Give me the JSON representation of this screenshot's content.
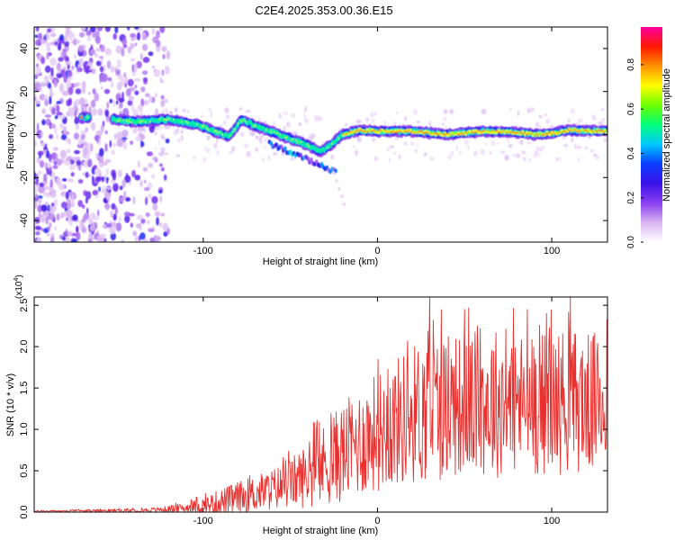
{
  "title": "C2E4.2025.353.00.36.E15",
  "colors": {
    "snr_line": "#e8312f",
    "axis": "#000000",
    "background": "#ffffff"
  },
  "chart_data": [
    {
      "type": "heatmap",
      "name": "spectrogram",
      "xlabel": "Height of straight line (km)",
      "ylabel": "Frequency (Hz)",
      "xlim": [
        -197,
        132
      ],
      "ylim": [
        -50,
        50
      ],
      "x_ticks": [
        -100,
        0,
        100
      ],
      "y_ticks": [
        -40,
        -20,
        0,
        20,
        40
      ],
      "grid": false,
      "colorbar": {
        "label": "Normalized spectral amplitude",
        "range": [
          0,
          0.97
        ],
        "ticks": [
          0.0,
          0.2,
          0.4,
          0.6,
          0.8
        ],
        "colormap": [
          "#ffffff",
          "#d8b4f0",
          "#8a3ff0",
          "#3a12e8",
          "#0a3cff",
          "#00c8ff",
          "#00ff7a",
          "#6cff00",
          "#ffff00",
          "#ff9000",
          "#ff1800",
          "#ff00a0"
        ]
      },
      "features": [
        {
          "label": "scattered noise",
          "x_range": [
            -197,
            -120
          ],
          "freq_range": [
            -50,
            50
          ],
          "amplitude": 0.25
        },
        {
          "label": "signal track",
          "points": [
            [
              -170,
              8
            ],
            [
              -150,
              7
            ],
            [
              -140,
              6
            ],
            [
              -120,
              7
            ],
            [
              -105,
              5
            ],
            [
              -95,
              2
            ],
            [
              -85,
              -1
            ],
            [
              -78,
              7
            ],
            [
              -70,
              4
            ],
            [
              -60,
              1
            ],
            [
              -50,
              -2
            ],
            [
              -40,
              -5
            ],
            [
              -33,
              -8
            ],
            [
              -27,
              -5
            ],
            [
              -20,
              0
            ],
            [
              -10,
              2
            ],
            [
              0,
              1.5
            ],
            [
              20,
              1.5
            ],
            [
              40,
              0
            ],
            [
              60,
              1.5
            ],
            [
              80,
              1
            ],
            [
              90,
              0
            ],
            [
              100,
              0.5
            ],
            [
              110,
              2
            ],
            [
              132,
              1.5
            ]
          ],
          "amplitude": 0.85
        }
      ]
    },
    {
      "type": "line",
      "name": "snr",
      "xlabel": "Height of straight line (km)",
      "ylabel": "SNR (10 * v/v)",
      "y_multiplier": "(x10",
      "y_multiplier_exp": "4",
      "y_multiplier_close": ")",
      "xlim": [
        -197,
        132
      ],
      "ylim": [
        0,
        2.6
      ],
      "x_ticks": [
        -100,
        0,
        100
      ],
      "y_ticks": [
        0.0,
        0.5,
        1.0,
        1.5,
        2.0,
        2.5
      ],
      "y_tick_labels": [
        "0.0",
        "0.5",
        "1.0",
        "1.5",
        "2.0",
        "2.5"
      ],
      "grid": false,
      "series": [
        {
          "name": "SNR envelope",
          "x": [
            -197,
            -140,
            -125,
            -110,
            -100,
            -90,
            -80,
            -70,
            -60,
            -50,
            -40,
            -30,
            -20,
            -10,
            0,
            10,
            20,
            30,
            40,
            50,
            60,
            70,
            80,
            90,
            100,
            110,
            120,
            132
          ],
          "mean": [
            0.01,
            0.02,
            0.03,
            0.05,
            0.08,
            0.12,
            0.17,
            0.22,
            0.28,
            0.35,
            0.45,
            0.58,
            0.72,
            0.85,
            0.98,
            1.08,
            1.18,
            1.25,
            1.28,
            1.3,
            1.32,
            1.33,
            1.32,
            1.3,
            1.33,
            1.35,
            1.32,
            1.35
          ],
          "amplitude": [
            0.01,
            0.02,
            0.03,
            0.06,
            0.1,
            0.16,
            0.2,
            0.22,
            0.25,
            0.3,
            0.4,
            0.5,
            0.6,
            0.66,
            0.72,
            0.78,
            0.85,
            0.92,
            0.88,
            0.85,
            0.9,
            0.92,
            0.88,
            0.86,
            0.88,
            0.9,
            0.85,
            0.82
          ],
          "peaks": [
            [
              30,
              2.6
            ],
            [
              50,
              2.45
            ],
            [
              86,
              2.45
            ],
            [
              97,
              2.4
            ]
          ],
          "samples_per_km": 3
        }
      ]
    }
  ]
}
